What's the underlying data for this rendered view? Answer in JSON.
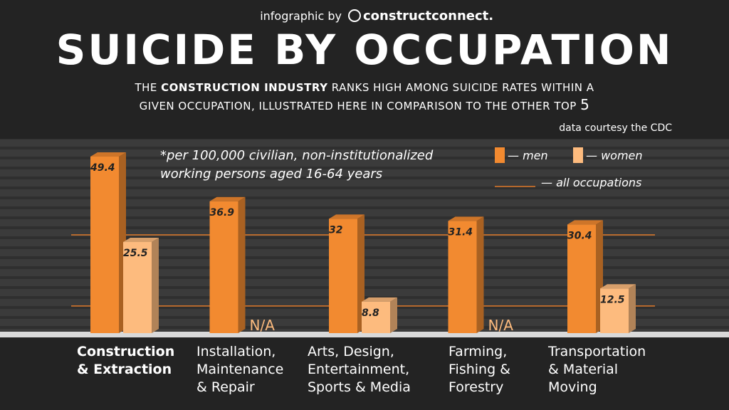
{
  "header": {
    "byline": "infographic by",
    "brand": "constructconnect."
  },
  "chart_data": {
    "type": "bar3d",
    "title": "SUICIDE BY OCCUPATION",
    "subtitle": [
      "THE ",
      "CONSTRUCTION INDUSTRY",
      " RANKS HIGH AMONG SUICIDE RATES WITHIN A",
      "GIVEN OCCUPATION, ILLUSTRATED HERE IN COMPARISON TO THE OTHER TOP ",
      "5"
    ],
    "source": "data courtesy the CDC",
    "note": [
      "*per 100,000 civilian, non-institutionalized",
      "working persons aged 16-64 years"
    ],
    "categories": [
      [
        "Construction",
        "& Extraction"
      ],
      [
        "Installation,",
        "Maintenance",
        "& Repair"
      ],
      [
        "Arts, Design,",
        "Entertainment,",
        "Sports & Media"
      ],
      [
        "Farming,",
        "Fishing &",
        "Forestry"
      ],
      [
        "Transportation",
        "& Material",
        "Moving"
      ]
    ],
    "series": [
      {
        "name": "— men",
        "color": "#f28a30",
        "values": [
          49.4,
          36.9,
          32,
          31.4,
          30.4
        ]
      },
      {
        "name": "— women",
        "color": "#fdbb7e",
        "values": [
          25.5,
          null,
          8.8,
          null,
          12.5
        ],
        "value_labels": [
          "25.5",
          "N/A",
          "8.8",
          "N/A",
          "12.5"
        ]
      }
    ],
    "reference": {
      "name": "— all occupations",
      "color": "#e07a2a",
      "values": [
        27.5,
        7.6
      ]
    }
  }
}
